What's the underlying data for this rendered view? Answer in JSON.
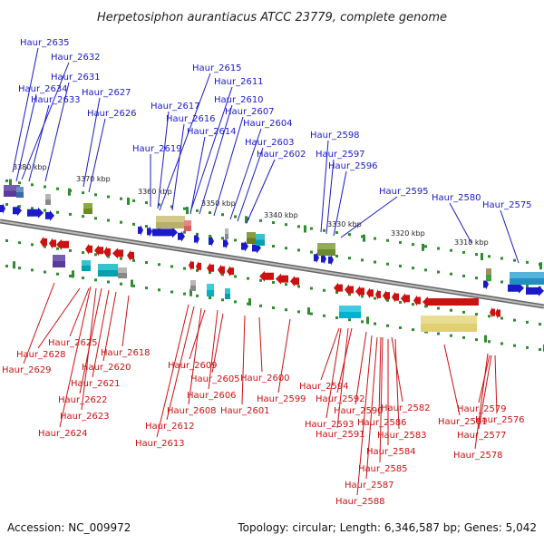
{
  "title": "Herpetosiphon aurantiacus ATCC 23779, complete genome",
  "footer": {
    "accession": "Accession: NC_009972",
    "summary": "Topology: circular; Length: 6,346,587 bp; Genes: 5,042"
  },
  "colors": {
    "forward": "#1a1ac8",
    "reverse": "#cc1111",
    "axis": "#888888",
    "tick": "#2e8b2e"
  },
  "kbp_labels": [
    "3380 kbp",
    "3370 kbp",
    "3360 kbp",
    "3350 kbp",
    "3340 kbp",
    "3330 kbp",
    "3320 kbp",
    "3310 kbp"
  ],
  "top_labels": [
    "Haur_2635",
    "Haur_2632",
    "Haur_2631",
    "Haur_2634",
    "Haur_2633",
    "Haur_2627",
    "Haur_2626",
    "Haur_2615",
    "Haur_2611",
    "Haur_2610",
    "Haur_2617",
    "Haur_2616",
    "Haur_2607",
    "Haur_2614",
    "Haur_2604",
    "Haur_2603",
    "Haur_2619",
    "Haur_2602",
    "Haur_2598",
    "Haur_2597",
    "Haur_2596",
    "Haur_2595",
    "Haur_2580",
    "Haur_2575"
  ],
  "bottom_labels": [
    "Haur_2625",
    "Haur_2628",
    "Haur_2618",
    "Haur_2629",
    "Haur_2620",
    "Haur_2621",
    "Haur_2622",
    "Haur_2623",
    "Haur_2624",
    "Haur_2609",
    "Haur_2605",
    "Haur_2600",
    "Haur_2606",
    "Haur_2599",
    "Haur_2608",
    "Haur_2601",
    "Haur_2612",
    "Haur_2613",
    "Haur_2594",
    "Haur_2592",
    "Haur_2590",
    "Haur_2582",
    "Haur_2593",
    "Haur_2586",
    "Haur_2591",
    "Haur_2583",
    "Haur_2584",
    "Haur_2585",
    "Haur_2587",
    "Haur_2588",
    "Haur_2579",
    "Haur_2576",
    "Haur_2581",
    "Haur_2577",
    "Haur_2578"
  ]
}
